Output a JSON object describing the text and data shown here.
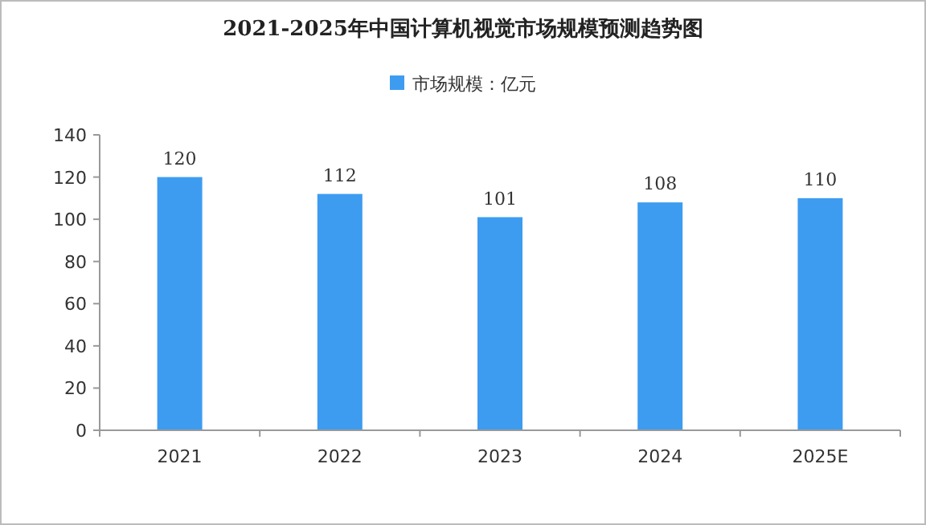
{
  "chart_data": {
    "type": "bar",
    "title": "2021-2025年中国计算机视觉市场规模预测趋势图",
    "categories": [
      "2021",
      "2022",
      "2023",
      "2024",
      "2025E"
    ],
    "series": [
      {
        "name": "市场规模：亿元",
        "color": "#3d9cf0",
        "values": [
          120,
          112,
          101,
          108,
          110
        ]
      }
    ],
    "ylim": [
      0,
      140
    ],
    "yticks": [
      0,
      20,
      40,
      60,
      80,
      100,
      120,
      140
    ],
    "data_labels": true,
    "legend": "top",
    "grid": false
  }
}
